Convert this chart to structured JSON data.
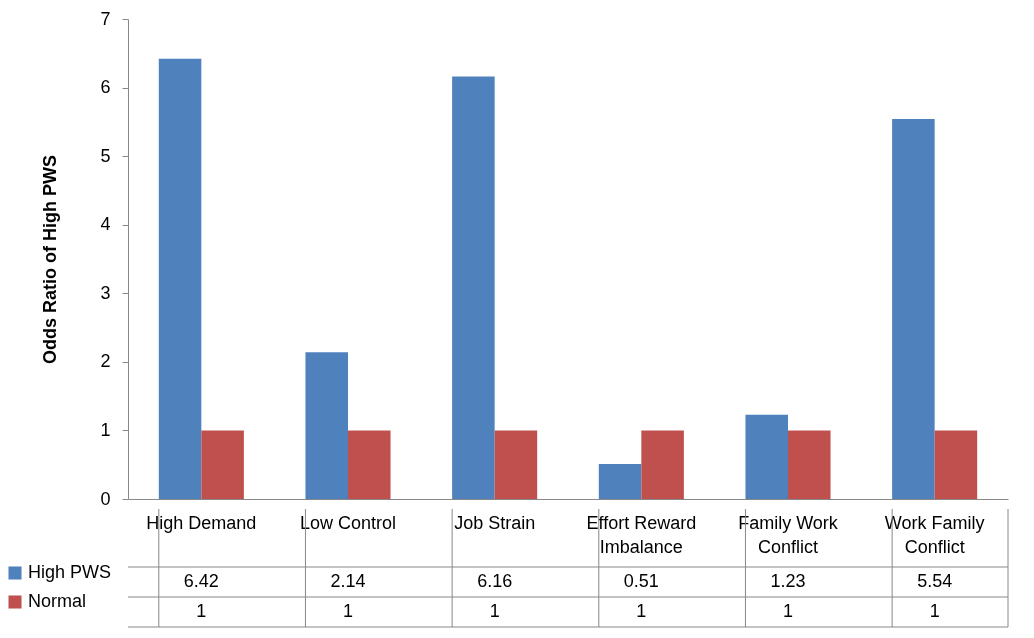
{
  "chart_data": {
    "type": "bar",
    "ylabel": "Odds Ratio of High PWS",
    "categories": [
      "High Demand",
      "Low Control",
      "Job Strain",
      "Effort Reward Imbalance",
      "Family Work Conflict",
      "Work Family Conflict"
    ],
    "series": [
      {
        "name": "High PWS",
        "color": "#4f81bd",
        "values": [
          6.42,
          2.14,
          6.16,
          0.51,
          1.23,
          5.54
        ]
      },
      {
        "name": "Normal",
        "color": "#c0504d",
        "values": [
          1,
          1,
          1,
          1,
          1,
          1
        ]
      }
    ],
    "ylim": [
      0,
      7
    ],
    "yticks": [
      0,
      1,
      2,
      3,
      4,
      5,
      6,
      7
    ],
    "grid": false,
    "legend": "bottom left",
    "data_labels": true
  }
}
